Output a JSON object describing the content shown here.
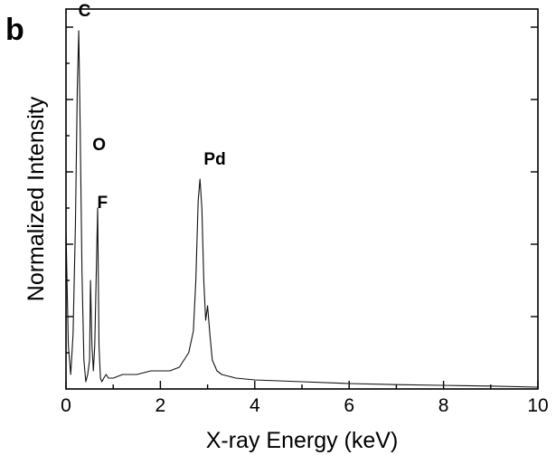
{
  "panel_label": "b",
  "chart_data": {
    "type": "line",
    "title": "",
    "xlabel": "X-ray Energy (keV)",
    "ylabel": "Normalized Intensity",
    "xlim": [
      0,
      10
    ],
    "ylim": [
      0,
      1.05
    ],
    "y_scale": "linear",
    "x_ticks": [
      0,
      2,
      4,
      6,
      8,
      10
    ],
    "x_tick_labels": [
      "0",
      "2",
      "4",
      "6",
      "8",
      "10"
    ],
    "y_tick_labels_shown": false,
    "grid": false,
    "legend": "none",
    "series": [
      {
        "x": [
          0.0,
          0.05,
          0.1,
          0.15,
          0.2,
          0.24,
          0.27,
          0.3,
          0.34,
          0.38,
          0.42,
          0.46,
          0.5,
          0.52,
          0.55,
          0.58,
          0.61,
          0.64,
          0.67,
          0.7,
          0.73,
          0.76,
          0.8,
          0.85,
          0.9,
          1.0,
          1.2,
          1.5,
          1.8,
          2.0,
          2.2,
          2.4,
          2.5,
          2.6,
          2.7,
          2.75,
          2.8,
          2.84,
          2.88,
          2.92,
          2.96,
          3.0,
          3.05,
          3.1,
          3.2,
          3.3,
          3.45,
          3.6,
          4.0,
          5.0,
          6.0,
          7.0,
          8.0,
          9.0,
          10.0
        ],
        "y": [
          0.44,
          0.12,
          0.04,
          0.15,
          0.45,
          0.83,
          0.99,
          0.72,
          0.32,
          0.08,
          0.02,
          0.04,
          0.08,
          0.3,
          0.12,
          0.05,
          0.12,
          0.31,
          0.5,
          0.12,
          0.03,
          0.02,
          0.03,
          0.04,
          0.03,
          0.03,
          0.04,
          0.04,
          0.05,
          0.05,
          0.05,
          0.06,
          0.08,
          0.1,
          0.16,
          0.3,
          0.52,
          0.58,
          0.5,
          0.3,
          0.19,
          0.23,
          0.15,
          0.08,
          0.05,
          0.04,
          0.035,
          0.03,
          0.025,
          0.02,
          0.015,
          0.012,
          0.01,
          0.008,
          0.005
        ]
      }
    ],
    "annotations": [
      {
        "text": "C",
        "x": 0.26,
        "y": 1.03
      },
      {
        "text": "O",
        "x": 0.56,
        "y": 0.66
      },
      {
        "text": "F",
        "x": 0.66,
        "y": 0.5
      },
      {
        "text": "Pd",
        "x": 2.92,
        "y": 0.62
      }
    ]
  }
}
